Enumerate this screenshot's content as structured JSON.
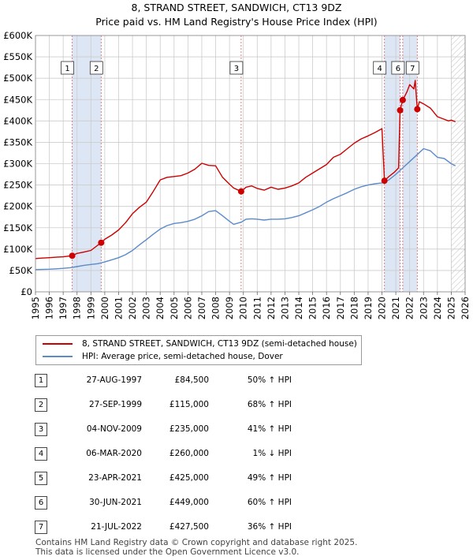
{
  "title_line1": "8, STRAND STREET, SANDWICH, CT13 9DZ",
  "title_line2": "Price paid vs. HM Land Registry's House Price Index (HPI)",
  "colors": {
    "property": "#cc0000",
    "hpi": "#5b8bc9",
    "shade": "#dde6f4",
    "grid": "#cccccc"
  },
  "legend": {
    "property": "8, STRAND STREET, SANDWICH, CT13 9DZ (semi-detached house)",
    "hpi": "HPI: Average price, semi-detached house, Dover"
  },
  "transactions": [
    {
      "num": "1",
      "date": "27-AUG-1997",
      "price": "£84,500",
      "hpi": "50% ↑ HPI"
    },
    {
      "num": "2",
      "date": "27-SEP-1999",
      "price": "£115,000",
      "hpi": "68% ↑ HPI"
    },
    {
      "num": "3",
      "date": "04-NOV-2009",
      "price": "£235,000",
      "hpi": "41% ↑ HPI"
    },
    {
      "num": "4",
      "date": "06-MAR-2020",
      "price": "£260,000",
      "hpi": "1% ↓ HPI"
    },
    {
      "num": "5",
      "date": "23-APR-2021",
      "price": "£425,000",
      "hpi": "49% ↑ HPI"
    },
    {
      "num": "6",
      "date": "30-JUN-2021",
      "price": "£449,000",
      "hpi": "60% ↑ HPI"
    },
    {
      "num": "7",
      "date": "21-JUL-2022",
      "price": "£427,500",
      "hpi": "36% ↑ HPI"
    }
  ],
  "footer_line1": "Contains HM Land Registry data © Crown copyright and database right 2025.",
  "footer_line2": "This data is licensed under the Open Government Licence v3.0.",
  "chart_data": {
    "type": "line",
    "title": "8, STRAND STREET, SANDWICH, CT13 9DZ — Price paid vs. HM Land Registry's House Price Index (HPI)",
    "xlabel": "",
    "ylabel": "",
    "xlim": [
      1995,
      2026
    ],
    "ylim": [
      0,
      600000
    ],
    "x_ticks": [
      "1995",
      "1996",
      "1997",
      "1998",
      "1999",
      "2000",
      "2001",
      "2002",
      "2003",
      "2004",
      "2005",
      "2006",
      "2007",
      "2008",
      "2009",
      "2010",
      "2011",
      "2012",
      "2013",
      "2014",
      "2015",
      "2016",
      "2017",
      "2018",
      "2019",
      "2020",
      "2021",
      "2022",
      "2023",
      "2024",
      "2025",
      "2026"
    ],
    "y_ticks": [
      {
        "value": 0,
        "label": "£0"
      },
      {
        "value": 50000,
        "label": "£50K"
      },
      {
        "value": 100000,
        "label": "£100K"
      },
      {
        "value": 150000,
        "label": "£150K"
      },
      {
        "value": 200000,
        "label": "£200K"
      },
      {
        "value": 250000,
        "label": "£250K"
      },
      {
        "value": 300000,
        "label": "£300K"
      },
      {
        "value": 350000,
        "label": "£350K"
      },
      {
        "value": 400000,
        "label": "£400K"
      },
      {
        "value": 450000,
        "label": "£450K"
      },
      {
        "value": 500000,
        "label": "£500K"
      },
      {
        "value": 550000,
        "label": "£550K"
      },
      {
        "value": 600000,
        "label": "£600K"
      }
    ],
    "shaded_ranges": [
      [
        1997.65,
        1999.74
      ],
      [
        2020.18,
        2021.32
      ],
      [
        2021.5,
        2022.55
      ]
    ],
    "hatched_from": 2025.0,
    "series": [
      {
        "name": "8, STRAND STREET, SANDWICH, CT13 9DZ (semi-detached house)",
        "color": "#cc0000",
        "x": [
          1995.0,
          1995.5,
          1996.0,
          1996.5,
          1997.0,
          1997.65,
          1998.0,
          1998.5,
          1999.0,
          1999.74,
          2000.0,
          2000.5,
          2001.0,
          2001.5,
          2002.0,
          2002.5,
          2003.0,
          2003.5,
          2004.0,
          2004.5,
          2005.0,
          2005.5,
          2006.0,
          2006.5,
          2007.0,
          2007.5,
          2008.0,
          2008.5,
          2009.0,
          2009.3,
          2009.84,
          2010.2,
          2010.6,
          2011.0,
          2011.5,
          2012.0,
          2012.5,
          2013.0,
          2013.5,
          2014.0,
          2014.5,
          2015.0,
          2015.5,
          2016.0,
          2016.5,
          2017.0,
          2017.5,
          2018.0,
          2018.5,
          2019.0,
          2019.5,
          2020.0,
          2020.18,
          2020.5,
          2020.9,
          2021.2,
          2021.31,
          2021.5,
          2021.8,
          2022.0,
          2022.3,
          2022.4,
          2022.55,
          2022.7,
          2023.0,
          2023.5,
          2024.0,
          2024.4,
          2024.8,
          2025.0,
          2025.3
        ],
        "values": [
          78000,
          79000,
          80000,
          81000,
          82000,
          84500,
          90000,
          93000,
          97000,
          115000,
          123000,
          133000,
          145000,
          162000,
          183000,
          198000,
          210000,
          235000,
          262000,
          268000,
          270000,
          272000,
          278000,
          287000,
          301000,
          296000,
          295000,
          268000,
          252000,
          243000,
          235000,
          245000,
          248000,
          242000,
          238000,
          245000,
          240000,
          243000,
          248000,
          255000,
          268000,
          278000,
          288000,
          298000,
          315000,
          322000,
          335000,
          348000,
          358000,
          365000,
          373000,
          382000,
          260000,
          270000,
          280000,
          290000,
          425000,
          449000,
          468000,
          485000,
          475000,
          495000,
          427500,
          445000,
          440000,
          430000,
          410000,
          405000,
          400000,
          402000,
          398000
        ]
      },
      {
        "name": "HPI: Average price, semi-detached house, Dover",
        "color": "#5b8bc9",
        "x": [
          1995.0,
          1995.5,
          1996.0,
          1996.5,
          1997.0,
          1997.5,
          1998.0,
          1998.5,
          1999.0,
          1999.5,
          2000.0,
          2000.5,
          2001.0,
          2001.5,
          2002.0,
          2002.5,
          2003.0,
          2003.5,
          2004.0,
          2004.5,
          2005.0,
          2005.5,
          2006.0,
          2006.5,
          2007.0,
          2007.5,
          2008.0,
          2008.5,
          2009.0,
          2009.3,
          2009.84,
          2010.2,
          2010.6,
          2011.0,
          2011.5,
          2012.0,
          2012.5,
          2013.0,
          2013.5,
          2014.0,
          2014.5,
          2015.0,
          2015.5,
          2016.0,
          2016.5,
          2017.0,
          2017.5,
          2018.0,
          2018.5,
          2019.0,
          2019.5,
          2020.0,
          2020.5,
          2021.0,
          2021.5,
          2022.0,
          2022.5,
          2023.0,
          2023.5,
          2024.0,
          2024.5,
          2025.0,
          2025.3
        ],
        "values": [
          52000,
          52500,
          53000,
          54000,
          55000,
          56500,
          59000,
          62000,
          64000,
          66000,
          70000,
          75000,
          80000,
          87000,
          97000,
          110000,
          122000,
          135000,
          147000,
          155000,
          160000,
          162000,
          165000,
          170000,
          178000,
          188000,
          190000,
          178000,
          165000,
          158000,
          163000,
          170000,
          171000,
          170000,
          168000,
          170000,
          170000,
          171000,
          174000,
          178000,
          185000,
          192000,
          200000,
          210000,
          218000,
          225000,
          232000,
          240000,
          246000,
          250000,
          253000,
          255000,
          262000,
          275000,
          290000,
          305000,
          320000,
          335000,
          330000,
          315000,
          312000,
          300000,
          295000
        ]
      }
    ],
    "sale_points": [
      {
        "label": "1",
        "x": 1997.65,
        "value": 84500
      },
      {
        "label": "2",
        "x": 1999.74,
        "value": 115000
      },
      {
        "label": "3",
        "x": 2009.84,
        "value": 235000
      },
      {
        "label": "4",
        "x": 2020.18,
        "value": 260000
      },
      {
        "label": "5",
        "x": 2021.31,
        "value": 425000
      },
      {
        "label": "6",
        "x": 2021.5,
        "value": 449000
      },
      {
        "label": "7",
        "x": 2022.55,
        "value": 427500
      }
    ],
    "marker_boxes": [
      {
        "label": "1",
        "x": 1997.65
      },
      {
        "label": "2",
        "x": 1999.74
      },
      {
        "label": "3",
        "x": 2009.84
      },
      {
        "label": "4",
        "x": 2020.18
      },
      {
        "label": "6",
        "x": 2021.5
      },
      {
        "label": "7",
        "x": 2022.55
      }
    ],
    "legend_position": "below"
  }
}
